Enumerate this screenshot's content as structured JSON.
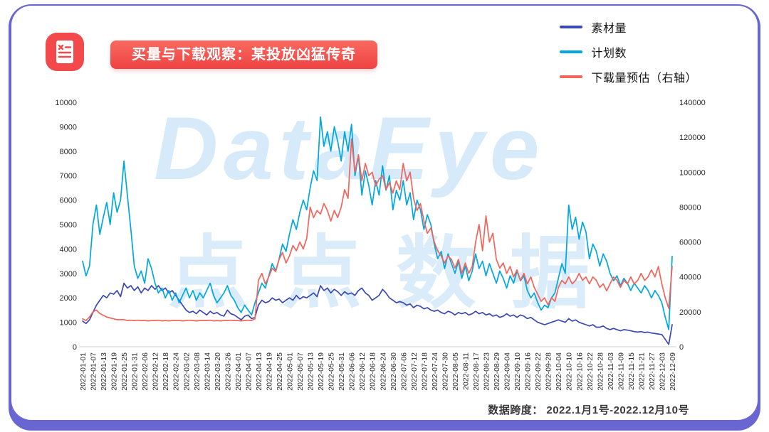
{
  "title": {
    "text": "买量与下载观察：某投放凶猛传奇"
  },
  "legend": [
    {
      "label": "素材量",
      "color": "#3a49b4"
    },
    {
      "label": "计划数",
      "color": "#00a7e1"
    },
    {
      "label": "下载量预估（右轴）",
      "color": "#f2655c"
    }
  ],
  "watermark": {
    "line1": "DataEye",
    "line2": "点点数据"
  },
  "footer": {
    "text": "数据跨度： 2022.1月1号-2022.12月10号"
  },
  "icon": {
    "name": "report-document-icon",
    "color": "#f4494b"
  },
  "colors": {
    "frame": "#6966d2",
    "banner": "#ee4343"
  },
  "chart_data": {
    "type": "line",
    "points_per_tick_interval": 3,
    "left_axis": {
      "min": 0,
      "max": 10000,
      "ticks": [
        0,
        1000,
        2000,
        3000,
        4000,
        5000,
        6000,
        7000,
        8000,
        9000,
        10000
      ]
    },
    "right_axis": {
      "min": 0,
      "max": 140000,
      "ticks": [
        0,
        20000,
        40000,
        60000,
        80000,
        100000,
        120000,
        140000
      ]
    },
    "x_tick_labels": [
      "2022-01-01",
      "2022-01-07",
      "2022-01-13",
      "2022-01-19",
      "2022-01-25",
      "2022-01-31",
      "2022-02-06",
      "2022-02-12",
      "2022-02-18",
      "2022-02-24",
      "2022-03-02",
      "2022-03-08",
      "2022-03-14",
      "2022-03-20",
      "2022-03-26",
      "2022-04-01",
      "2022-04-07",
      "2022-04-13",
      "2022-04-19",
      "2022-04-25",
      "2022-05-01",
      "2022-05-07",
      "2022-05-13",
      "2022-05-19",
      "2022-05-25",
      "2022-05-31",
      "2022-06-06",
      "2022-06-12",
      "2022-06-18",
      "2022-06-24",
      "2022-06-30",
      "2022-07-06",
      "2022-07-12",
      "2022-07-18",
      "2022-07-24",
      "2022-07-30",
      "2022-08-05",
      "2022-08-11",
      "2022-08-17",
      "2022-08-23",
      "2022-08-29",
      "2022-09-04",
      "2022-09-10",
      "2022-09-16",
      "2022-09-22",
      "2022-09-28",
      "2022-10-04",
      "2022-10-10",
      "2022-10-16",
      "2022-10-22",
      "2022-10-28",
      "2022-11-03",
      "2022-11-09",
      "2022-11-15",
      "2022-11-21",
      "2022-11-27",
      "2022-12-03",
      "2022-12-09"
    ],
    "series": [
      {
        "name": "素材量",
        "axis": "left",
        "color": "#3a49b4",
        "values": [
          1050,
          950,
          1100,
          1400,
          1700,
          1900,
          2100,
          2000,
          2200,
          2150,
          2300,
          2050,
          2600,
          2400,
          2500,
          2300,
          2450,
          2200,
          2400,
          2300,
          2500,
          2350,
          2500,
          2300,
          2400,
          2200,
          2300,
          2100,
          1900,
          1700,
          1500,
          1400,
          1450,
          1350,
          1500,
          1400,
          1300,
          1450,
          1350,
          1400,
          1300,
          1250,
          1500,
          1350,
          1300,
          1200,
          1100,
          1250,
          1300,
          1150,
          1200,
          1700,
          1900,
          1800,
          1850,
          2000,
          1900,
          1950,
          1800,
          1900,
          2000,
          1900,
          2100,
          1950,
          2050,
          2000,
          2100,
          2200,
          2050,
          2500,
          2300,
          2400,
          2200,
          2350,
          2250,
          2100,
          2250,
          2150,
          2200,
          2100,
          2300,
          2400,
          2200,
          2100,
          1900,
          2000,
          2100,
          2350,
          2200,
          2000,
          1900,
          1800,
          1850,
          1800,
          1700,
          1750,
          1600,
          1700,
          1650,
          1550,
          1600,
          1500,
          1450,
          1500,
          1400,
          1350,
          1450,
          1400,
          1300,
          1400,
          1350,
          1400,
          1300,
          1350,
          1450,
          1350,
          1400,
          1300,
          1350,
          1250,
          1300,
          1200,
          1250,
          1350,
          1250,
          1300,
          1200,
          1300,
          1250,
          1150,
          1200,
          1100,
          1000,
          950,
          900,
          950,
          1000,
          1050,
          1100,
          1050,
          1000,
          1150,
          1050,
          1100,
          1000,
          950,
          900,
          850,
          900,
          800,
          800,
          850,
          750,
          700,
          750,
          700,
          650,
          700,
          680,
          650,
          620,
          600,
          620,
          580,
          600,
          560,
          540,
          520,
          500,
          300,
          100,
          900
        ]
      },
      {
        "name": "计划数",
        "axis": "left",
        "color": "#00a7e1",
        "values": [
          3500,
          2900,
          3300,
          5000,
          5800,
          4600,
          5300,
          5900,
          5000,
          6300,
          5500,
          6000,
          7600,
          6200,
          4800,
          3300,
          2800,
          3100,
          2600,
          3600,
          3200,
          2600,
          2200,
          2400,
          2000,
          2300,
          1900,
          2200,
          1800,
          2100,
          2400,
          2000,
          2300,
          1900,
          2200,
          2000,
          2300,
          2600,
          2100,
          1800,
          2000,
          2200,
          2500,
          2100,
          1900,
          1600,
          1400,
          1700,
          1500,
          1300,
          1800,
          2200,
          2600,
          2400,
          2900,
          3400,
          3100,
          3600,
          4200,
          3900,
          4600,
          5200,
          4800,
          5500,
          6000,
          5600,
          6500,
          7200,
          6800,
          9400,
          8200,
          8800,
          8000,
          9000,
          8400,
          7600,
          8800,
          8000,
          9100,
          7000,
          7800,
          6200,
          7200,
          6600,
          5800,
          6800,
          6200,
          7400,
          6400,
          7000,
          5600,
          6400,
          6000,
          6800,
          5800,
          6300,
          5200,
          6000,
          5600,
          4800,
          5400,
          5000,
          4200,
          3600,
          3900,
          3200,
          3800,
          3400,
          3000,
          3500,
          2800,
          3300,
          2700,
          3100,
          3800,
          3200,
          3500,
          2900,
          3400,
          3000,
          2600,
          3100,
          2800,
          2400,
          2900,
          2600,
          3100,
          2700,
          2900,
          2300,
          2000,
          2200,
          1800,
          1500,
          1700,
          1600,
          2000,
          2200,
          2800,
          3400,
          3000,
          5800,
          4800,
          5300,
          4400,
          5100,
          4700,
          3600,
          4200,
          3900,
          3300,
          3800,
          3500,
          3000,
          2700,
          2900,
          2500,
          2800,
          2600,
          2300,
          2600,
          2400,
          2200,
          2500,
          2300,
          2000,
          2300,
          2100,
          1800,
          1200,
          700,
          3700
        ]
      },
      {
        "name": "下载量预估（右轴）",
        "axis": "right",
        "color": "#f2655c",
        "values": [
          16000,
          15000,
          17000,
          20000,
          21000,
          19000,
          18000,
          17000,
          16500,
          16000,
          15500,
          15500,
          15500,
          15000,
          15200,
          15000,
          15200,
          15000,
          15000,
          14800,
          15000,
          15000,
          15200,
          14800,
          15000,
          14800,
          15000,
          15000,
          15000,
          14800,
          15000,
          15200,
          15000,
          14800,
          15000,
          15000,
          15000,
          15200,
          14800,
          15000,
          14800,
          15000,
          15000,
          15200,
          15000,
          15000,
          14800,
          15000,
          15200,
          15000,
          16000,
          38000,
          42000,
          36000,
          40000,
          45000,
          43000,
          50000,
          54000,
          48000,
          52000,
          58000,
          55000,
          60000,
          56000,
          62000,
          80000,
          74000,
          78000,
          76000,
          82000,
          78000,
          72000,
          78000,
          74000,
          80000,
          90000,
          85000,
          119000,
          100000,
          110000,
          95000,
          105000,
          98000,
          100000,
          92000,
          96000,
          98000,
          90000,
          94000,
          88000,
          95000,
          90000,
          105000,
          95000,
          100000,
          85000,
          78000,
          82000,
          72000,
          65000,
          68000,
          60000,
          55000,
          52000,
          48000,
          52000,
          50000,
          45000,
          50000,
          42000,
          48000,
          42000,
          46000,
          60000,
          70000,
          55000,
          75000,
          60000,
          65000,
          50000,
          45000,
          48000,
          42000,
          46000,
          40000,
          44000,
          38000,
          42000,
          36000,
          40000,
          34000,
          30000,
          26000,
          28000,
          24000,
          28000,
          26000,
          34000,
          38000,
          36000,
          40000,
          36000,
          38000,
          42000,
          38000,
          40000,
          36000,
          40000,
          38000,
          34000,
          36000,
          32000,
          36000,
          40000,
          38000,
          34000,
          38000,
          36000,
          40000,
          36000,
          38000,
          42000,
          38000,
          40000,
          44000,
          40000,
          46000,
          36000,
          28000,
          22000,
          46000
        ]
      }
    ]
  }
}
